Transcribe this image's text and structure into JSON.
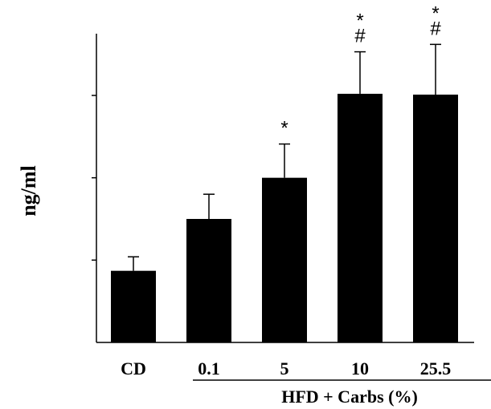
{
  "chart_data": {
    "type": "bar",
    "categories": [
      "CD",
      "0.1",
      "5",
      "10",
      "25.5"
    ],
    "values": [
      0.87,
      1.5,
      2.0,
      3.02,
      3.01
    ],
    "errors": [
      0.17,
      0.3,
      0.41,
      0.51,
      0.61
    ],
    "annotations": [
      "",
      "",
      "*",
      "*\n#",
      "*\n#"
    ],
    "ylabel": "ng/ml",
    "group_label": "HFD + Carbs (%)",
    "group_categories": [
      "0.1",
      "5",
      "10",
      "25.5"
    ],
    "ylim": [
      0,
      3.75
    ],
    "yticks": [
      0,
      1,
      2,
      3
    ],
    "show_y_tick_labels": false,
    "grid": false,
    "bar_color": "#000000"
  }
}
